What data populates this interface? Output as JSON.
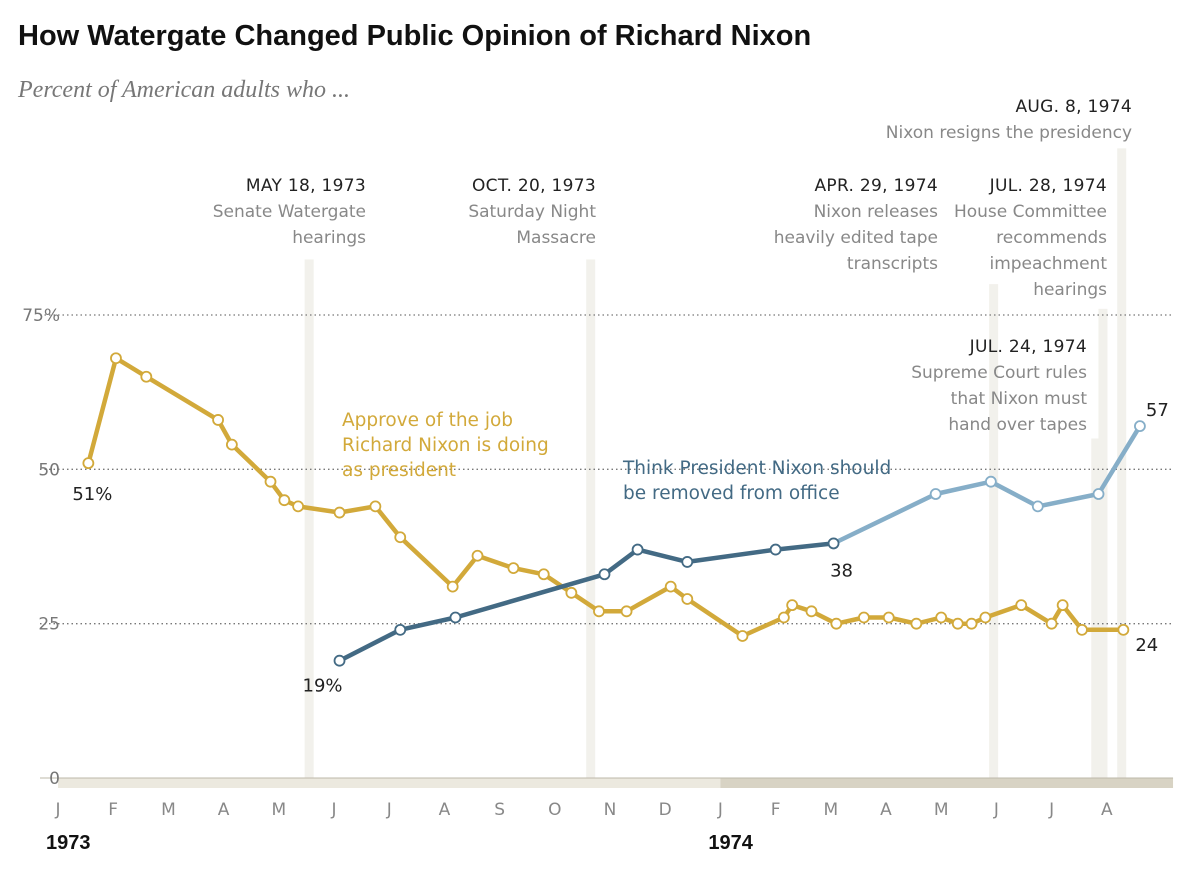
{
  "title": "How Watergate Changed Public Opinion of Richard Nixon",
  "subtitle": "Percent of American adults who ...",
  "colors": {
    "approve": "#d2a93a",
    "removed_dark": "#436a84",
    "removed_light": "#86aec8",
    "event_band": "#f2f1ec",
    "axis_band_1973": "#ece9df",
    "axis_band_1974": "#d8d3c4",
    "gridline": "#777777"
  },
  "chart_data": {
    "type": "line",
    "y_axis": {
      "range": [
        0,
        75
      ],
      "ticks": [
        {
          "value": 75,
          "label": "75%"
        },
        {
          "value": 50,
          "label": "50"
        },
        {
          "value": 25,
          "label": "25"
        },
        {
          "value": 0,
          "label": "0"
        }
      ]
    },
    "x_axis": {
      "unit": "months since Jan 1, 1973",
      "range": [
        0,
        20.2
      ],
      "ticks": [
        "J",
        "F",
        "M",
        "A",
        "M",
        "J",
        "J",
        "A",
        "S",
        "O",
        "N",
        "D",
        "J",
        "F",
        "M",
        "A",
        "M",
        "J",
        "J",
        "A"
      ],
      "years": [
        {
          "label": "1973",
          "at": 0
        },
        {
          "label": "1974",
          "at": 12
        }
      ]
    },
    "series": [
      {
        "name": "approve",
        "label_lines": [
          "Approve of the job",
          "Richard Nixon is doing",
          "as president"
        ],
        "start_label": "51%",
        "end_label": "24",
        "points": [
          [
            0.55,
            51
          ],
          [
            1.05,
            68
          ],
          [
            1.6,
            65
          ],
          [
            2.9,
            58
          ],
          [
            3.15,
            54
          ],
          [
            3.85,
            48
          ],
          [
            4.1,
            45
          ],
          [
            4.35,
            44
          ],
          [
            5.1,
            43
          ],
          [
            5.75,
            44
          ],
          [
            6.2,
            39
          ],
          [
            7.15,
            31
          ],
          [
            7.6,
            36
          ],
          [
            8.25,
            34
          ],
          [
            8.8,
            33
          ],
          [
            9.3,
            30
          ],
          [
            9.8,
            27
          ],
          [
            10.3,
            27
          ],
          [
            11.1,
            31
          ],
          [
            11.4,
            29
          ],
          [
            12.4,
            23
          ],
          [
            13.15,
            26
          ],
          [
            13.3,
            28
          ],
          [
            13.65,
            27
          ],
          [
            14.1,
            25
          ],
          [
            14.6,
            26
          ],
          [
            15.05,
            26
          ],
          [
            15.55,
            25
          ],
          [
            16.0,
            26
          ],
          [
            16.3,
            25
          ],
          [
            16.55,
            25
          ],
          [
            16.8,
            26
          ],
          [
            17.45,
            28
          ],
          [
            18.0,
            25
          ],
          [
            18.2,
            28
          ],
          [
            18.55,
            24
          ],
          [
            19.3,
            24
          ]
        ]
      },
      {
        "name": "removed",
        "label_lines": [
          "Think President Nixon should",
          "be removed from office"
        ],
        "start_label": "19%",
        "mid_label": "38",
        "end_label": "57",
        "points": [
          [
            5.1,
            19
          ],
          [
            6.2,
            24
          ],
          [
            7.2,
            26
          ],
          [
            9.9,
            33
          ],
          [
            10.5,
            37
          ],
          [
            11.4,
            35
          ],
          [
            13.0,
            37
          ],
          [
            14.05,
            38
          ],
          [
            15.9,
            46
          ],
          [
            16.9,
            48
          ],
          [
            17.75,
            44
          ],
          [
            18.85,
            46
          ],
          [
            19.6,
            57
          ]
        ],
        "dark_segment_end_index": 7
      }
    ],
    "events": [
      {
        "at": 4.55,
        "band_top": 84,
        "date": "MAY 18, 1973",
        "lines": [
          "Senate Watergate",
          "hearings"
        ]
      },
      {
        "at": 9.65,
        "band_top": 84,
        "date": "OCT. 20, 1973",
        "lines": [
          "Saturday Night",
          "Massacre"
        ]
      },
      {
        "at": 16.95,
        "band_top": 80,
        "date": "APR. 29, 1974",
        "lines": [
          "Nixon releases",
          "heavily edited tape",
          "transcripts"
        ]
      },
      {
        "at": 18.8,
        "band_top": 55,
        "date": "JUL. 24, 1974",
        "lines": [
          "Supreme Court rules",
          "that Nixon must",
          "hand over tapes"
        ]
      },
      {
        "at": 18.93,
        "band_top": 76,
        "date": "JUL. 28, 1974",
        "lines": [
          "House Committee",
          "recommends",
          "impeachment",
          "hearings"
        ]
      },
      {
        "at": 19.27,
        "band_top": 102,
        "date": "AUG. 8, 1974",
        "lines": [
          "Nixon resigns the presidency"
        ]
      }
    ]
  }
}
